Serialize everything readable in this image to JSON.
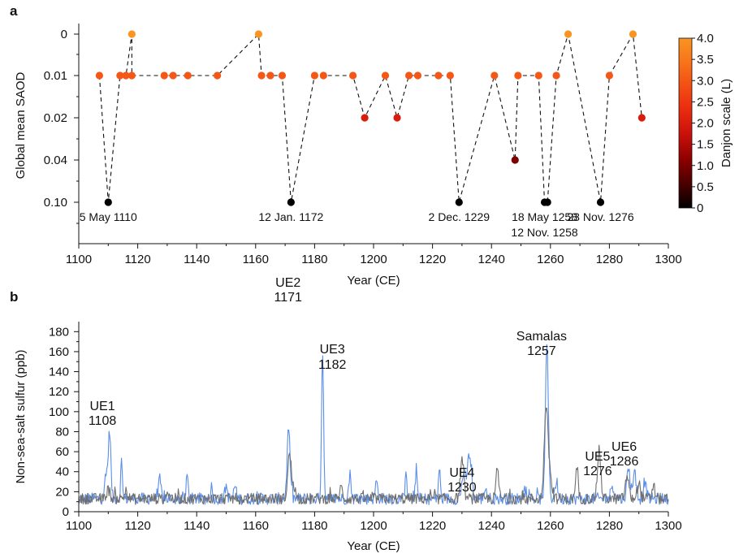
{
  "chart_data": [
    {
      "panel": "a",
      "type": "scatter",
      "xlabel": "Year (CE)",
      "ylabel": "Global mean SAOD",
      "xlim": [
        1100,
        1300
      ],
      "xticks": [
        1100,
        1120,
        1140,
        1160,
        1180,
        1200,
        1220,
        1240,
        1260,
        1280,
        1300
      ],
      "yticks": [
        "0",
        "0.01",
        "0.02",
        "0.04",
        "0.10"
      ],
      "y_scale": "categorical",
      "grid": false,
      "connector": "dashed",
      "colorbar": {
        "label": "Danjon scale (L)",
        "range": [
          0,
          4
        ],
        "ticks": [
          "0",
          "0.5",
          "1.0",
          "1.5",
          "2.0",
          "2.5",
          "3.0",
          "3.5",
          "4.0"
        ],
        "colors": [
          "#000000",
          "#4a0000",
          "#8c0000",
          "#c8100a",
          "#e82a10",
          "#f24d14",
          "#f8731a",
          "#fa9422"
        ]
      },
      "points": [
        {
          "x": 1107,
          "y": "0.01",
          "L": 3.0
        },
        {
          "x": 1110,
          "y": "0.10",
          "L": 0.0
        },
        {
          "x": 1114,
          "y": "0.01",
          "L": 3.0
        },
        {
          "x": 1116,
          "y": "0.01",
          "L": 3.0
        },
        {
          "x": 1118,
          "y": "0",
          "L": 4.0
        },
        {
          "x": 1118,
          "y": "0.01",
          "L": 3.0
        },
        {
          "x": 1129,
          "y": "0.01",
          "L": 3.0
        },
        {
          "x": 1132,
          "y": "0.01",
          "L": 3.0
        },
        {
          "x": 1137,
          "y": "0.01",
          "L": 3.0
        },
        {
          "x": 1147,
          "y": "0.01",
          "L": 3.0
        },
        {
          "x": 1161,
          "y": "0",
          "L": 4.0
        },
        {
          "x": 1162,
          "y": "0.01",
          "L": 3.0
        },
        {
          "x": 1165,
          "y": "0.01",
          "L": 3.0
        },
        {
          "x": 1169,
          "y": "0.01",
          "L": 3.0
        },
        {
          "x": 1172,
          "y": "0.10",
          "L": 0.0
        },
        {
          "x": 1180,
          "y": "0.01",
          "L": 3.0
        },
        {
          "x": 1183,
          "y": "0.01",
          "L": 3.0
        },
        {
          "x": 1193,
          "y": "0.01",
          "L": 3.0
        },
        {
          "x": 1197,
          "y": "0.02",
          "L": 2.0
        },
        {
          "x": 1204,
          "y": "0.01",
          "L": 3.0
        },
        {
          "x": 1208,
          "y": "0.02",
          "L": 2.0
        },
        {
          "x": 1212,
          "y": "0.01",
          "L": 3.0
        },
        {
          "x": 1215,
          "y": "0.01",
          "L": 3.0
        },
        {
          "x": 1222,
          "y": "0.01",
          "L": 3.0
        },
        {
          "x": 1226,
          "y": "0.01",
          "L": 3.0
        },
        {
          "x": 1229,
          "y": "0.10",
          "L": 0.0
        },
        {
          "x": 1241,
          "y": "0.01",
          "L": 3.0
        },
        {
          "x": 1248,
          "y": "0.04",
          "L": 1.0
        },
        {
          "x": 1249,
          "y": "0.01",
          "L": 3.0
        },
        {
          "x": 1256,
          "y": "0.01",
          "L": 3.0
        },
        {
          "x": 1258,
          "y": "0.10",
          "L": 0.0
        },
        {
          "x": 1259,
          "y": "0.10",
          "L": 0.0
        },
        {
          "x": 1262,
          "y": "0.01",
          "L": 3.0
        },
        {
          "x": 1266,
          "y": "0",
          "L": 4.0
        },
        {
          "x": 1277,
          "y": "0.10",
          "L": 0.0
        },
        {
          "x": 1280,
          "y": "0.01",
          "L": 3.0
        },
        {
          "x": 1288,
          "y": "0",
          "L": 4.0
        },
        {
          "x": 1291,
          "y": "0.02",
          "L": 2.0
        }
      ],
      "annotations": [
        {
          "text": "5 May 1110",
          "x": 1110
        },
        {
          "text": "12 Jan. 1172",
          "x": 1172
        },
        {
          "text": "2 Dec. 1229",
          "x": 1229
        },
        {
          "text": "18 May 1258",
          "x": 1258
        },
        {
          "text": "12 Nov. 1258",
          "x": 1258
        },
        {
          "text": "23 Nov. 1276",
          "x": 1277
        }
      ]
    },
    {
      "panel": "b",
      "type": "line",
      "xlabel": "Year (CE)",
      "ylabel": "Non-sea-salt sulfur (ppb)",
      "xlim": [
        1100,
        1300
      ],
      "ylim": [
        0,
        190
      ],
      "xticks": [
        1100,
        1120,
        1140,
        1160,
        1180,
        1200,
        1220,
        1240,
        1260,
        1280,
        1300
      ],
      "yticks": [
        0,
        20,
        40,
        60,
        80,
        100,
        120,
        140,
        160,
        180
      ],
      "grid": false,
      "series_colors": [
        "#5b8ee6",
        "#6e6e6e"
      ],
      "baseline": 13,
      "series": [
        {
          "color": "#5b8ee6",
          "peaks": [
            {
              "x": 1109.5,
              "y": 38,
              "w": 0.6
            },
            {
              "x": 1110.5,
              "y": 75,
              "w": 0.4
            },
            {
              "x": 1114.5,
              "y": 50,
              "w": 0.3
            },
            {
              "x": 1127.5,
              "y": 32,
              "w": 0.4
            },
            {
              "x": 1136.8,
              "y": 38,
              "w": 0.3
            },
            {
              "x": 1145,
              "y": 25,
              "w": 0.4
            },
            {
              "x": 1150,
              "y": 26,
              "w": 0.4
            },
            {
              "x": 1153,
              "y": 26,
              "w": 0.4
            },
            {
              "x": 1171.2,
              "y": 82,
              "w": 0.5
            },
            {
              "x": 1182.7,
              "y": 160,
              "w": 0.35
            },
            {
              "x": 1192,
              "y": 37,
              "w": 0.4
            },
            {
              "x": 1201,
              "y": 30,
              "w": 0.4
            },
            {
              "x": 1211,
              "y": 45,
              "w": 0.3
            },
            {
              "x": 1214.5,
              "y": 43,
              "w": 0.3
            },
            {
              "x": 1222.3,
              "y": 44,
              "w": 0.3
            },
            {
              "x": 1230.5,
              "y": 38,
              "w": 0.6
            },
            {
              "x": 1232.5,
              "y": 57,
              "w": 0.7
            },
            {
              "x": 1238,
              "y": 25,
              "w": 0.4
            },
            {
              "x": 1251,
              "y": 25,
              "w": 0.4
            },
            {
              "x": 1258.8,
              "y": 165,
              "w": 0.5
            },
            {
              "x": 1262,
              "y": 30,
              "w": 0.5
            },
            {
              "x": 1281,
              "y": 27,
              "w": 0.5
            },
            {
              "x": 1286.5,
              "y": 42,
              "w": 0.6
            },
            {
              "x": 1288.5,
              "y": 40,
              "w": 0.5
            },
            {
              "x": 1292,
              "y": 30,
              "w": 0.5
            }
          ]
        },
        {
          "color": "#6e6e6e",
          "peaks": [
            {
              "x": 1110,
              "y": 22,
              "w": 0.6
            },
            {
              "x": 1116,
              "y": 20,
              "w": 0.5
            },
            {
              "x": 1130,
              "y": 20,
              "w": 0.5
            },
            {
              "x": 1171.5,
              "y": 57,
              "w": 0.6
            },
            {
              "x": 1173,
              "y": 25,
              "w": 0.5
            },
            {
              "x": 1189,
              "y": 24,
              "w": 0.5
            },
            {
              "x": 1230,
              "y": 48,
              "w": 0.6
            },
            {
              "x": 1242,
              "y": 43,
              "w": 0.45
            },
            {
              "x": 1258.5,
              "y": 104,
              "w": 0.6
            },
            {
              "x": 1259.8,
              "y": 38,
              "w": 0.6
            },
            {
              "x": 1269,
              "y": 45,
              "w": 0.4
            },
            {
              "x": 1276.5,
              "y": 63,
              "w": 0.55
            },
            {
              "x": 1286,
              "y": 35,
              "w": 0.6
            },
            {
              "x": 1290,
              "y": 28,
              "w": 0.6
            },
            {
              "x": 1295,
              "y": 25,
              "w": 0.5
            }
          ]
        }
      ],
      "annotations": [
        {
          "name": "UE1",
          "year": "1108",
          "x": 1108
        },
        {
          "name": "UE2",
          "year": "1171",
          "x": 1171
        },
        {
          "name": "UE3",
          "year": "1182",
          "x": 1186
        },
        {
          "name": "UE4",
          "year": "1230",
          "x": 1230
        },
        {
          "name": "Samalas",
          "year": "1257",
          "x": 1257
        },
        {
          "name": "UE5",
          "year": "1276",
          "x": 1276
        },
        {
          "name": "UE6",
          "year": "1286",
          "x": 1285
        }
      ]
    }
  ]
}
